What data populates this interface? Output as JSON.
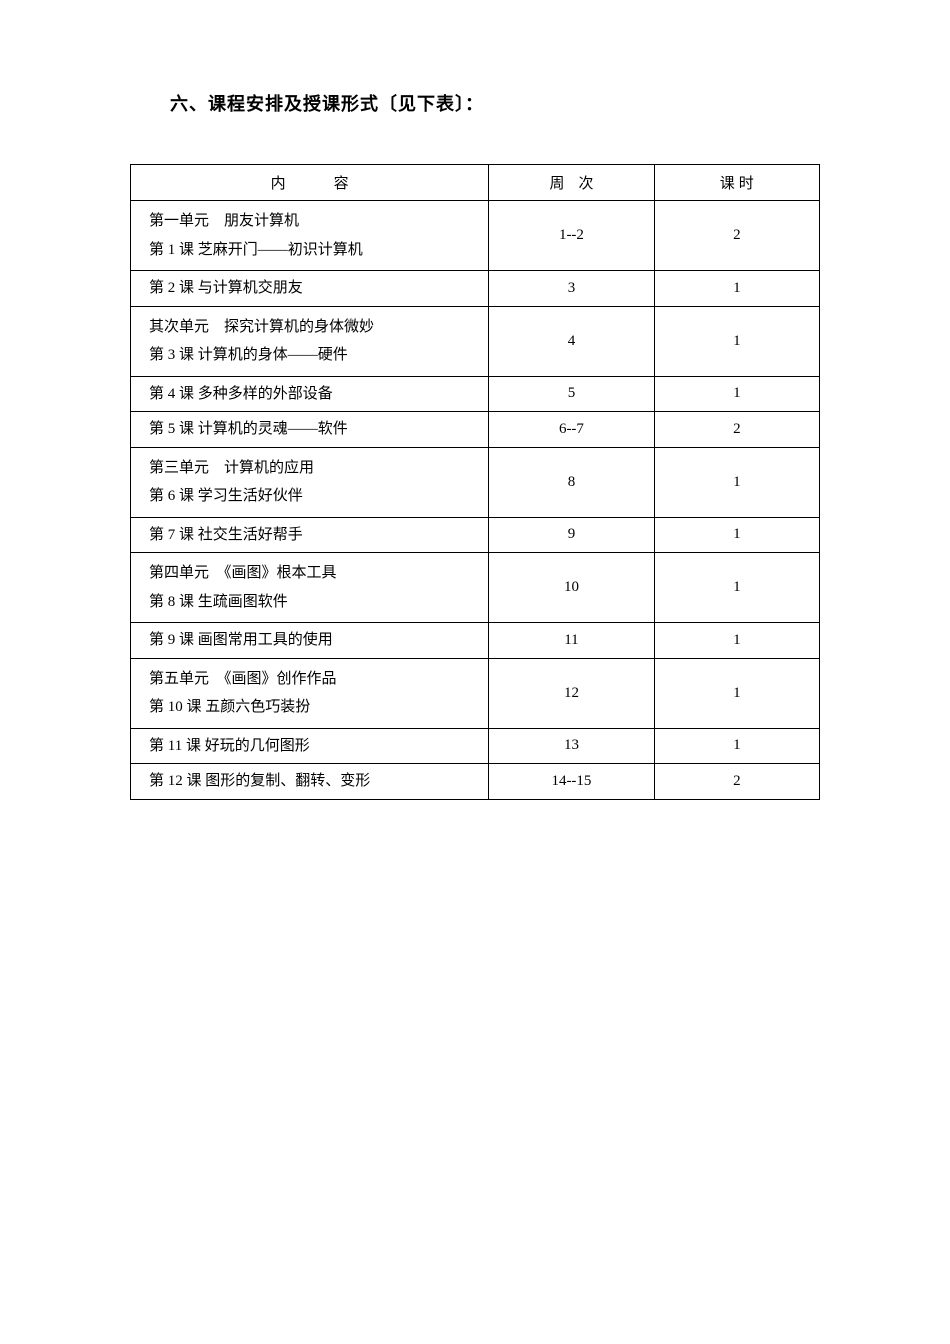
{
  "heading": "六、课程安排及授课形式〔见下表〕：",
  "table": {
    "headers": {
      "content": "内容",
      "week": "周次",
      "hours": "课时"
    },
    "rows": [
      {
        "content_line1": "第一单元　朋友计算机",
        "content_line2": "第 1 课  芝麻开门——初识计算机",
        "week": "1--2",
        "hours": "2",
        "multiline": true
      },
      {
        "content_line1": "第 2 课  与计算机交朋友",
        "week": "3",
        "hours": "1",
        "multiline": false
      },
      {
        "content_line1": "其次单元　探究计算机的身体微妙",
        "content_line2": "第 3 课  计算机的身体——硬件",
        "week": "4",
        "hours": "1",
        "multiline": true
      },
      {
        "content_line1": "第 4 课  多种多样的外部设备",
        "week": "5",
        "hours": "1",
        "multiline": false
      },
      {
        "content_line1": "第 5 课  计算机的灵魂——软件",
        "week": "6--7",
        "hours": "2",
        "multiline": false
      },
      {
        "content_line1": "第三单元　计算机的应用",
        "content_line2": "第 6 课  学习生活好伙伴",
        "week": "8",
        "hours": "1",
        "multiline": true
      },
      {
        "content_line1": "第 7 课  社交生活好帮手",
        "week": "9",
        "hours": "1",
        "multiline": false
      },
      {
        "content_line1": "第四单元　《画图》根本工具",
        "content_line2": "第 8 课  生疏画图软件",
        "week": "10",
        "hours": "1",
        "multiline": true
      },
      {
        "content_line1": "第 9 课  画图常用工具的使用",
        "week": "11",
        "hours": "1",
        "multiline": false
      },
      {
        "content_line1": "第五单元　《画图》创作作品",
        "content_line2": "第 10 课  五颜六色巧装扮",
        "week": "12",
        "hours": "1",
        "multiline": true
      },
      {
        "content_line1": "第 11 课  好玩的几何图形",
        "week": "13",
        "hours": "1",
        "multiline": false
      },
      {
        "content_line1": "第 12 课  图形的复制、翻转、变形",
        "week": "14--15",
        "hours": "2",
        "multiline": false
      }
    ]
  },
  "styles": {
    "background_color": "#ffffff",
    "text_color": "#000000",
    "border_color": "#000000",
    "heading_fontsize": 18,
    "cell_fontsize": 15,
    "font_family": "SimSun"
  }
}
